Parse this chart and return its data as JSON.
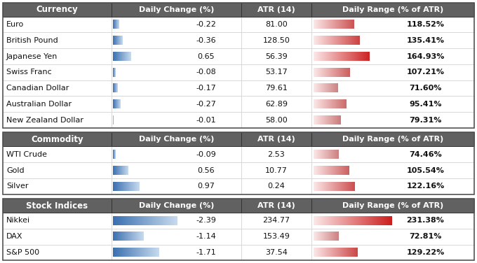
{
  "sections": [
    {
      "header": "Currency",
      "rows": [
        {
          "name": "Euro",
          "daily_change": -0.22,
          "atr": "81.00",
          "daily_range_pct": 118.52
        },
        {
          "name": "British Pound",
          "daily_change": -0.36,
          "atr": "128.50",
          "daily_range_pct": 135.41
        },
        {
          "name": "Japanese Yen",
          "daily_change": 0.65,
          "atr": "56.39",
          "daily_range_pct": 164.93
        },
        {
          "name": "Swiss Franc",
          "daily_change": -0.08,
          "atr": "53.17",
          "daily_range_pct": 107.21
        },
        {
          "name": "Canadian Dollar",
          "daily_change": -0.17,
          "atr": "79.61",
          "daily_range_pct": 71.6
        },
        {
          "name": "Australian Dollar",
          "daily_change": -0.27,
          "atr": "62.89",
          "daily_range_pct": 95.41
        },
        {
          "name": "New Zealand Dollar",
          "daily_change": -0.01,
          "atr": "58.00",
          "daily_range_pct": 79.31
        }
      ]
    },
    {
      "header": "Commodity",
      "rows": [
        {
          "name": "WTI Crude",
          "daily_change": -0.09,
          "atr": "2.53",
          "daily_range_pct": 74.46
        },
        {
          "name": "Gold",
          "daily_change": 0.56,
          "atr": "10.77",
          "daily_range_pct": 105.54
        },
        {
          "name": "Silver",
          "daily_change": 0.97,
          "atr": "0.24",
          "daily_range_pct": 122.16
        }
      ]
    },
    {
      "header": "Stock Indices",
      "rows": [
        {
          "name": "Nikkei",
          "daily_change": -2.39,
          "atr": "234.77",
          "daily_range_pct": 231.38
        },
        {
          "name": "DAX",
          "daily_change": -1.14,
          "atr": "153.49",
          "daily_range_pct": 72.81
        },
        {
          "name": "S&P 500",
          "daily_change": -1.71,
          "atr": "37.54",
          "daily_range_pct": 129.22
        }
      ]
    }
  ],
  "col_headers": [
    "Daily Change (%)",
    "ATR (14)",
    "Daily Range (% of ATR)"
  ],
  "header_bg": "#616161",
  "row_bg": "#ffffff",
  "border_color": "#aaaaaa",
  "outer_border": "#555555",
  "bar_max_change": 2.5,
  "bar_max_range": 250
}
